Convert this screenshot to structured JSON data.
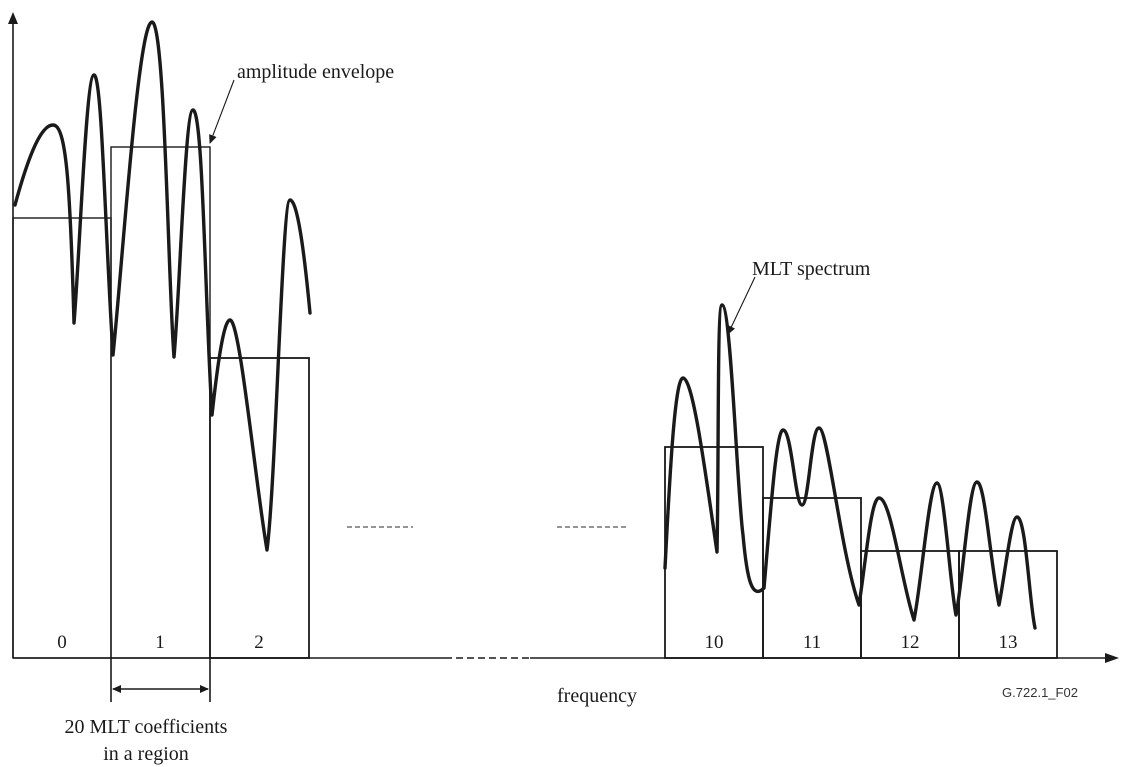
{
  "diagram": {
    "axis": {
      "x_label": "frequency"
    },
    "regions": [
      {
        "label": "0"
      },
      {
        "label": "1"
      },
      {
        "label": "2"
      },
      {
        "label": "10"
      },
      {
        "label": "11"
      },
      {
        "label": "12"
      },
      {
        "label": "13"
      }
    ],
    "annotations": {
      "amplitude_envelope": "amplitude envelope",
      "mlt_spectrum": "MLT spectrum",
      "coefficients_line1": "20 MLT coefficients",
      "coefficients_line2": "in a  region"
    },
    "figure_id": "G.722.1_F02",
    "colors": {
      "line": "#1a1a1a",
      "background": "#ffffff"
    }
  }
}
